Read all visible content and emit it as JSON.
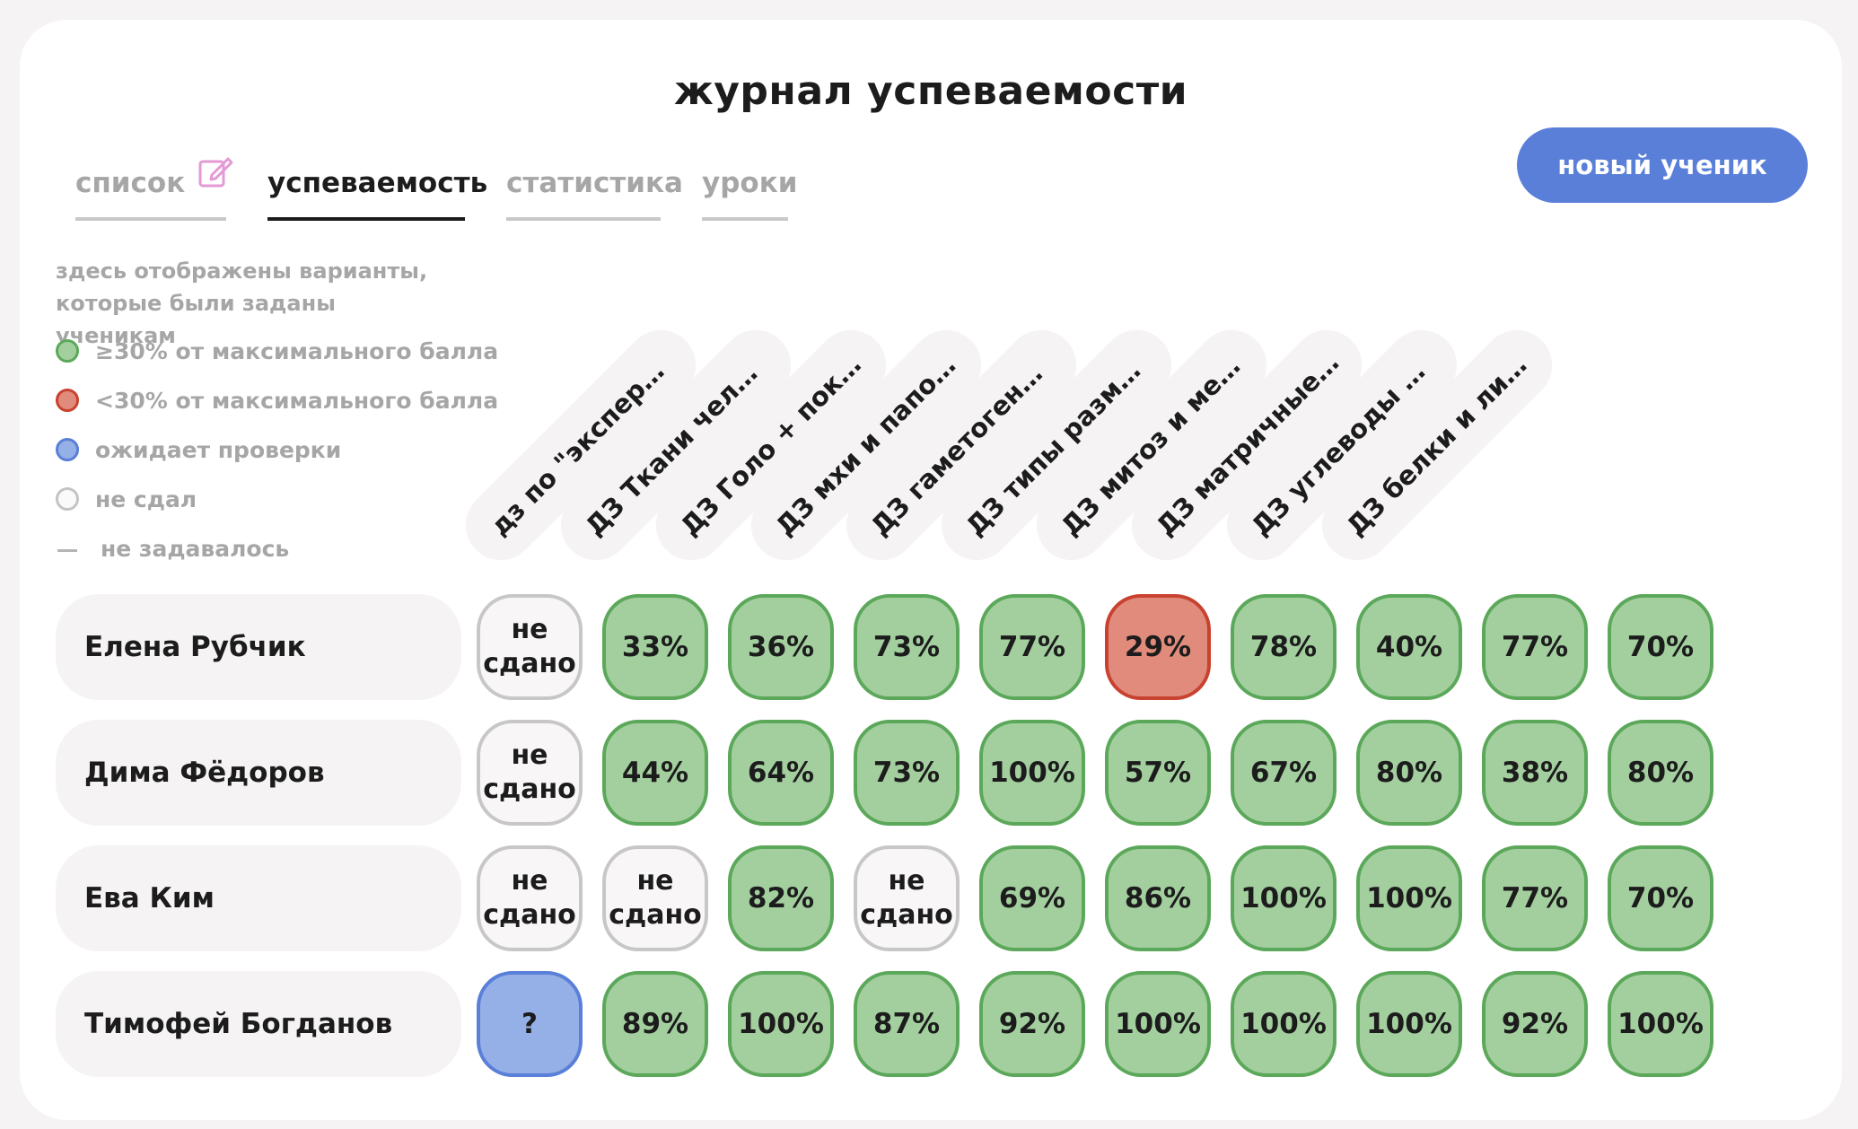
{
  "title": "журнал успеваемости",
  "tabs": [
    {
      "label": "список",
      "active": false
    },
    {
      "label": "успеваемость",
      "active": true
    },
    {
      "label": "статистика",
      "active": false
    },
    {
      "label": "уроки",
      "active": false
    }
  ],
  "new_button": "новый ученик",
  "legend": {
    "note": "здесь отображены варианты, которые были заданы ученикам",
    "items": [
      {
        "type": "green",
        "label": "≥30% от максимального балла"
      },
      {
        "type": "red",
        "label": "<30% от максимального балла"
      },
      {
        "type": "blue",
        "label": "ожидает проверки"
      },
      {
        "type": "none",
        "label": "не сдал"
      },
      {
        "type": "dash",
        "label": "не задавалось"
      }
    ]
  },
  "assignments": [
    "дз по \"экспериме…",
    "ДЗ Ткани человек…",
    "ДЗ Голо + покрыт…",
    "ДЗ мхи и папорот…",
    "ДЗ гаметогенез + …",
    "ДЗ типы размнож…",
    "ДЗ митоз и мейоз",
    "ДЗ матричные си…",
    "ДЗ углеводы и ну…",
    "ДЗ белки и липиды"
  ],
  "students": [
    {
      "name": "Елена Рубчик",
      "grades": [
        {
          "status": "none",
          "text": "не сдано"
        },
        {
          "status": "green",
          "text": "33%"
        },
        {
          "status": "green",
          "text": "36%"
        },
        {
          "status": "green",
          "text": "73%"
        },
        {
          "status": "green",
          "text": "77%"
        },
        {
          "status": "red",
          "text": "29%"
        },
        {
          "status": "green",
          "text": "78%"
        },
        {
          "status": "green",
          "text": "40%"
        },
        {
          "status": "green",
          "text": "77%"
        },
        {
          "status": "green",
          "text": "70%"
        }
      ]
    },
    {
      "name": "Дима Фёдоров",
      "grades": [
        {
          "status": "none",
          "text": "не сдано"
        },
        {
          "status": "green",
          "text": "44%"
        },
        {
          "status": "green",
          "text": "64%"
        },
        {
          "status": "green",
          "text": "73%"
        },
        {
          "status": "green",
          "text": "100%"
        },
        {
          "status": "green",
          "text": "57%"
        },
        {
          "status": "green",
          "text": "67%"
        },
        {
          "status": "green",
          "text": "80%"
        },
        {
          "status": "green",
          "text": "38%"
        },
        {
          "status": "green",
          "text": "80%"
        }
      ]
    },
    {
      "name": "Ева Ким",
      "grades": [
        {
          "status": "none",
          "text": "не сдано"
        },
        {
          "status": "none",
          "text": "не сдано"
        },
        {
          "status": "green",
          "text": "82%"
        },
        {
          "status": "none",
          "text": "не сдано"
        },
        {
          "status": "green",
          "text": "69%"
        },
        {
          "status": "green",
          "text": "86%"
        },
        {
          "status": "green",
          "text": "100%"
        },
        {
          "status": "green",
          "text": "100%"
        },
        {
          "status": "green",
          "text": "77%"
        },
        {
          "status": "green",
          "text": "70%"
        }
      ]
    },
    {
      "name": "Тимофей Богданов",
      "grades": [
        {
          "status": "blue",
          "text": "?"
        },
        {
          "status": "green",
          "text": "89%"
        },
        {
          "status": "green",
          "text": "100%"
        },
        {
          "status": "green",
          "text": "87%"
        },
        {
          "status": "green",
          "text": "92%"
        },
        {
          "status": "green",
          "text": "100%"
        },
        {
          "status": "green",
          "text": "100%"
        },
        {
          "status": "green",
          "text": "100%"
        },
        {
          "status": "green",
          "text": "92%"
        },
        {
          "status": "green",
          "text": "100%"
        }
      ]
    }
  ],
  "colors": {
    "green_fill": "#a3cf9f",
    "green_border": "#5ca85a",
    "red_fill": "#e08b7c",
    "red_border": "#c9412f",
    "blue": "#5a7fd9",
    "gray_border": "#c7c7c7"
  },
  "icons": {
    "edit": "edit-icon"
  }
}
